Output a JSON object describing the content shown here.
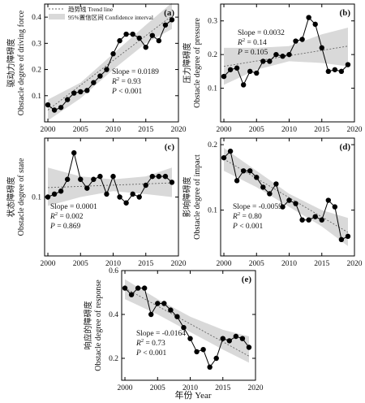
{
  "legend": {
    "trend_line": "趋势线 Trend line",
    "confidence_interval": "95%置信区间 Confidence interval"
  },
  "common_xlabel": "年份 Year",
  "colors": {
    "line": "#000000",
    "band": "#d9d9d9",
    "trend": "#666666"
  },
  "chart_data": [
    {
      "type": "line",
      "panel_label": "(a)",
      "ylabel_cn": "驱动力障碍度",
      "ylabel_en": "Obstacle degree of driving force",
      "xlim": [
        1999.5,
        2020
      ],
      "ylim": [
        0.0,
        0.45
      ],
      "x_ticks": [
        2000,
        2005,
        2010,
        2015,
        2020
      ],
      "y_ticks": [
        0.0,
        0.1,
        0.2,
        0.3,
        0.4
      ],
      "y_tick_labels": [
        "",
        "0.1",
        "0.2",
        "0.3",
        "0.4"
      ],
      "x": [
        2000,
        2001,
        2002,
        2003,
        2004,
        2005,
        2006,
        2007,
        2008,
        2009,
        2010,
        2011,
        2012,
        2013,
        2014,
        2015,
        2016,
        2017,
        2018,
        2019
      ],
      "y": [
        0.065,
        0.045,
        0.055,
        0.085,
        0.11,
        0.115,
        0.12,
        0.15,
        0.175,
        0.2,
        0.26,
        0.31,
        0.335,
        0.335,
        0.32,
        0.285,
        0.33,
        0.31,
        0.37,
        0.39
      ],
      "trend": {
        "x": [
          2000,
          2019
        ],
        "y": [
          0.045,
          0.405
        ]
      },
      "band": {
        "x": [
          2000,
          2005,
          2010,
          2015,
          2019
        ],
        "upper": [
          0.085,
          0.15,
          0.26,
          0.37,
          0.455
        ],
        "lower": [
          0.005,
          0.09,
          0.2,
          0.3,
          0.355
        ]
      },
      "stats": {
        "slope": "Slope = 0.0189",
        "r2": "0.93",
        "p": "< 0.001"
      },
      "r2_label": "R",
      "p_label": "P"
    },
    {
      "type": "line",
      "panel_label": "(b)",
      "ylabel_cn": "压力障碍度",
      "ylabel_en": "Obstacle degree of pressure",
      "xlim": [
        1999.5,
        2020
      ],
      "ylim": [
        0.0,
        0.35
      ],
      "x_ticks": [
        2000,
        2005,
        2010,
        2015,
        2020
      ],
      "y_ticks": [
        0.0,
        0.1,
        0.2,
        0.3
      ],
      "y_tick_labels": [
        "",
        "0.1",
        "0.2",
        "0.3"
      ],
      "x": [
        2000,
        2001,
        2002,
        2003,
        2004,
        2005,
        2006,
        2007,
        2008,
        2009,
        2010,
        2011,
        2012,
        2013,
        2014,
        2015,
        2016,
        2017,
        2018,
        2019
      ],
      "y": [
        0.135,
        0.155,
        0.16,
        0.11,
        0.15,
        0.145,
        0.18,
        0.18,
        0.2,
        0.195,
        0.2,
        0.24,
        0.245,
        0.31,
        0.29,
        0.22,
        0.15,
        0.155,
        0.15,
        0.17
      ],
      "trend": {
        "x": [
          2000,
          2019
        ],
        "y": [
          0.165,
          0.225
        ]
      },
      "band": {
        "x": [
          2000,
          2005,
          2010,
          2015,
          2019
        ],
        "upper": [
          0.22,
          0.22,
          0.225,
          0.26,
          0.28
        ],
        "lower": [
          0.11,
          0.155,
          0.18,
          0.175,
          0.165
        ]
      },
      "stats": {
        "slope": "Slope = 0.0032",
        "r2": "0.14",
        "p": "= 0.105"
      },
      "r2_label": "R",
      "p_label": "P"
    },
    {
      "type": "line",
      "panel_label": "(c)",
      "ylabel_cn": "状态障碍度",
      "ylabel_en": "Obstacle degree of state",
      "xlim": [
        1999.5,
        2020
      ],
      "ylim": [
        0.0,
        0.2
      ],
      "x_ticks": [
        2000,
        2005,
        2010,
        2015,
        2020
      ],
      "y_ticks": [
        0.0,
        0.1
      ],
      "y_tick_labels": [
        "",
        "0.1"
      ],
      "x": [
        2000,
        2001,
        2002,
        2003,
        2004,
        2005,
        2006,
        2007,
        2008,
        2009,
        2010,
        2011,
        2012,
        2013,
        2014,
        2015,
        2016,
        2017,
        2018,
        2019
      ],
      "y": [
        0.1,
        0.105,
        0.11,
        0.13,
        0.175,
        0.13,
        0.115,
        0.13,
        0.135,
        0.105,
        0.135,
        0.1,
        0.09,
        0.105,
        0.1,
        0.12,
        0.135,
        0.135,
        0.135,
        0.125
      ],
      "trend": {
        "x": [
          2000,
          2019
        ],
        "y": [
          0.116,
          0.124
        ]
      },
      "band": {
        "x": [
          2000,
          2005,
          2010,
          2015,
          2019
        ],
        "upper": [
          0.15,
          0.135,
          0.13,
          0.135,
          0.15
        ],
        "lower": [
          0.085,
          0.1,
          0.11,
          0.105,
          0.1
        ]
      },
      "stats": {
        "slope": "Slope = 0.0001",
        "r2": "0.002",
        "p": "= 0.869"
      },
      "r2_label": "R",
      "p_label": "P"
    },
    {
      "type": "line",
      "panel_label": "(d)",
      "ylabel_cn": "影响障碍度",
      "ylabel_en": "Obstacle degree of impact",
      "xlim": [
        1999.5,
        2020
      ],
      "ylim": [
        0.03,
        0.21
      ],
      "x_ticks": [
        2000,
        2005,
        2010,
        2015,
        2020
      ],
      "y_ticks": [
        0.1,
        0.2
      ],
      "y_tick_labels": [
        "0.1",
        "0.2"
      ],
      "x": [
        2000,
        2001,
        2002,
        2003,
        2004,
        2005,
        2006,
        2007,
        2008,
        2009,
        2010,
        2011,
        2012,
        2013,
        2014,
        2015,
        2016,
        2017,
        2018,
        2019
      ],
      "y": [
        0.18,
        0.19,
        0.145,
        0.16,
        0.16,
        0.15,
        0.135,
        0.125,
        0.14,
        0.105,
        0.115,
        0.11,
        0.085,
        0.085,
        0.09,
        0.085,
        0.115,
        0.105,
        0.055,
        0.06
      ],
      "trend": {
        "x": [
          2000,
          2019
        ],
        "y": [
          0.178,
          0.066
        ]
      },
      "band": {
        "x": [
          2000,
          2005,
          2010,
          2015,
          2019
        ],
        "upper": [
          0.195,
          0.16,
          0.125,
          0.1,
          0.088
        ],
        "lower": [
          0.16,
          0.135,
          0.105,
          0.075,
          0.045
        ]
      },
      "stats": {
        "slope": "Slope = -0.0059",
        "r2": "0.80",
        "p": "< 0.001"
      },
      "r2_label": "R",
      "p_label": "P"
    },
    {
      "type": "line",
      "panel_label": "(e)",
      "ylabel_cn": "响应的障碍度",
      "ylabel_en": "Obstacle degree of response",
      "xlim": [
        1999.5,
        2020
      ],
      "ylim": [
        0.1,
        0.6
      ],
      "x_ticks": [
        2000,
        2005,
        2010,
        2015,
        2020
      ],
      "y_ticks": [
        0.2,
        0.4,
        0.6
      ],
      "y_tick_labels": [
        "0.2",
        "0.4",
        "0.6"
      ],
      "x": [
        2000,
        2001,
        2002,
        2003,
        2004,
        2005,
        2006,
        2007,
        2008,
        2009,
        2010,
        2011,
        2012,
        2013,
        2014,
        2015,
        2016,
        2017,
        2018,
        2019
      ],
      "y": [
        0.52,
        0.49,
        0.52,
        0.52,
        0.4,
        0.45,
        0.45,
        0.42,
        0.39,
        0.34,
        0.29,
        0.23,
        0.24,
        0.16,
        0.2,
        0.29,
        0.28,
        0.3,
        0.29,
        0.25
      ],
      "trend": {
        "x": [
          2000,
          2019
        ],
        "y": [
          0.52,
          0.21
        ]
      },
      "band": {
        "x": [
          2000,
          2005,
          2010,
          2015,
          2019
        ],
        "upper": [
          0.56,
          0.47,
          0.39,
          0.33,
          0.3
        ],
        "lower": [
          0.47,
          0.4,
          0.32,
          0.24,
          0.18
        ]
      },
      "stats": {
        "slope": "Slope = -0.0164",
        "r2": "0.73",
        "p": "< 0.001"
      },
      "r2_label": "R",
      "p_label": "P"
    }
  ]
}
